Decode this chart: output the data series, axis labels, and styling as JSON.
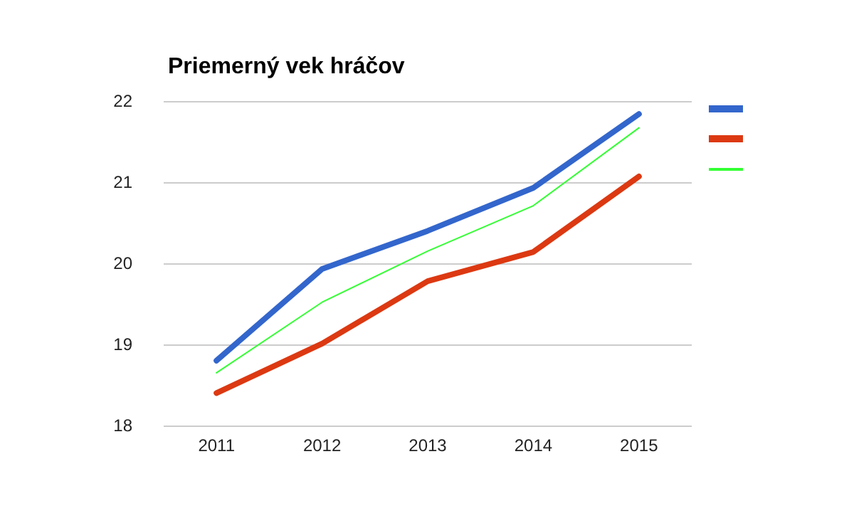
{
  "chart_data": {
    "type": "line",
    "title": "Priemerný vek hráčov",
    "categories": [
      "2011",
      "2012",
      "2013",
      "2014",
      "2015"
    ],
    "series": [
      {
        "color": "#3366cc",
        "values": [
          18.8,
          19.93,
          20.4,
          20.93,
          21.84
        ]
      },
      {
        "color": "#dc3912",
        "values": [
          18.4,
          19.01,
          19.78,
          20.14,
          21.07
        ]
      },
      {
        "color": "#33ff33",
        "values": [
          18.65,
          19.52,
          20.15,
          20.71,
          21.67
        ]
      }
    ],
    "ylim": [
      18,
      22
    ],
    "yticks": [
      18,
      19,
      20,
      21,
      22
    ],
    "grid": "y",
    "marker": "none"
  }
}
